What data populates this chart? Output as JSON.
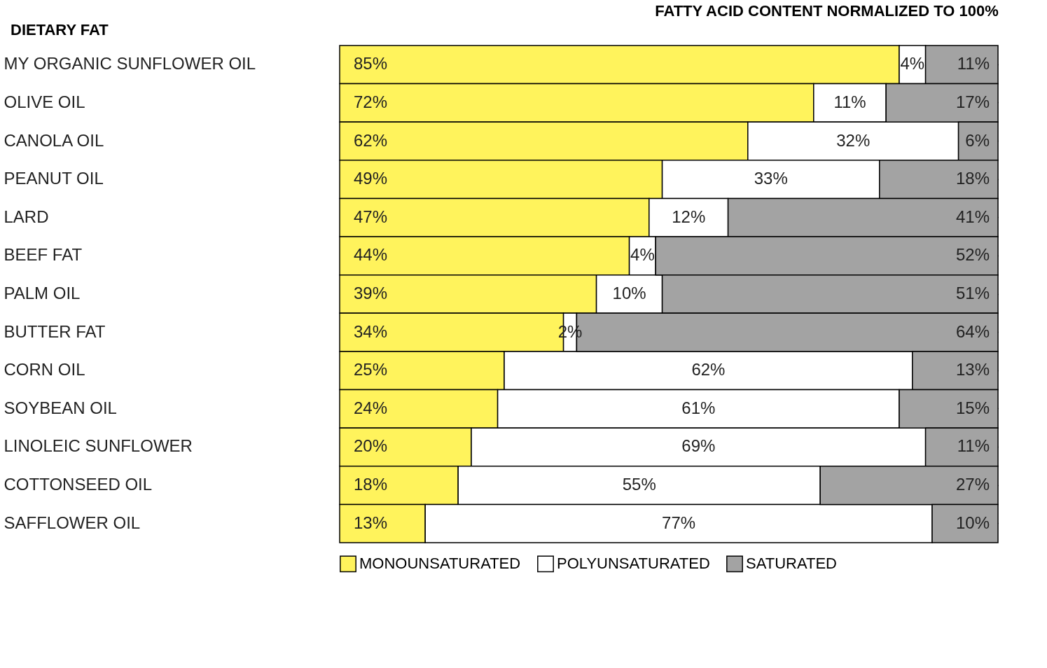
{
  "chart_data": {
    "type": "bar",
    "orientation": "horizontal",
    "stacked": true,
    "legend": "bottom",
    "title": "FATTY ACID CONTENT NORMALIZED TO 100%",
    "annotations": [
      "DIETARY FAT"
    ],
    "categories": [
      "MY ORGANIC SUNFLOWER OIL",
      "OLIVE OIL",
      "CANOLA OIL",
      "PEANUT OIL",
      "LARD",
      "BEEF FAT",
      "PALM OIL",
      "BUTTER FAT",
      "CORN OIL",
      "SOYBEAN OIL",
      "LINOLEIC SUNFLOWER",
      "COTTONSEED OIL",
      "SAFFLOWER OIL"
    ],
    "series": [
      {
        "name": "MONOUNSATURATED",
        "color": "#fff35c",
        "values": [
          85,
          72,
          62,
          49,
          47,
          44,
          39,
          34,
          25,
          24,
          20,
          18,
          13
        ],
        "value_labels": [
          "85%",
          "72%",
          "62%",
          "49%",
          "47%",
          "44%",
          "39%",
          "34%",
          "25%",
          "24%",
          "20%",
          "18%",
          "13%"
        ]
      },
      {
        "name": "POLYUNSATURATED",
        "color": "#ffffff",
        "values": [
          4,
          11,
          32,
          33,
          12,
          4,
          10,
          2,
          62,
          61,
          69,
          55,
          77
        ],
        "value_labels": [
          "4%",
          "11%",
          "32%",
          "33%",
          "12%",
          "4%",
          "10%",
          "2%",
          "62%",
          "61%",
          "69%",
          "55%",
          "77%"
        ]
      },
      {
        "name": "SATURATED",
        "color": "#a3a3a3",
        "values": [
          11,
          17,
          6,
          18,
          41,
          52,
          51,
          64,
          13,
          15,
          11,
          27,
          10
        ],
        "value_labels": [
          "11%",
          "17%",
          "6%",
          "18%",
          "41%",
          "52%",
          "51%",
          "64%",
          "13%",
          "15%",
          "11%",
          "27%",
          "10%"
        ]
      }
    ]
  }
}
